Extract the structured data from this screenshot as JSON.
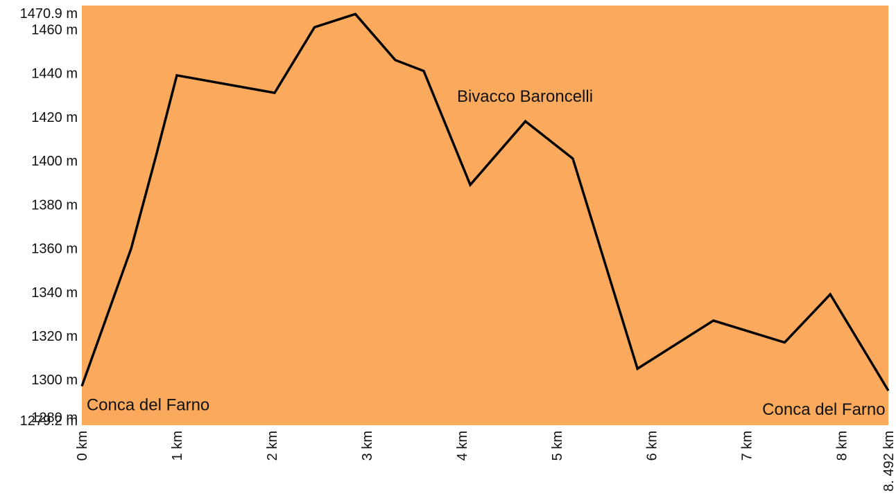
{
  "chart_data": {
    "type": "area",
    "title": "",
    "xlabel": "",
    "ylabel": "",
    "xlim": [
      0,
      8.492
    ],
    "ylim": [
      1279.2,
      1470.9
    ],
    "grid": false,
    "legend": "none",
    "colors": {
      "fill": "#FBAA5D",
      "line": "#000000"
    },
    "y_ticks": [
      {
        "value": 1470.9,
        "label": "1470.9 m"
      },
      {
        "value": 1460,
        "label": "1460 m"
      },
      {
        "value": 1440,
        "label": "1440 m"
      },
      {
        "value": 1420,
        "label": "1420 m"
      },
      {
        "value": 1400,
        "label": "1400 m"
      },
      {
        "value": 1380,
        "label": "1380 m"
      },
      {
        "value": 1360,
        "label": "1360 m"
      },
      {
        "value": 1340,
        "label": "1340 m"
      },
      {
        "value": 1320,
        "label": "1320 m"
      },
      {
        "value": 1300,
        "label": "1300 m"
      },
      {
        "value": 1280,
        "label": "1280 m"
      },
      {
        "value": 1279.2,
        "label": "1279.2 m"
      }
    ],
    "x_ticks": [
      {
        "value": 0,
        "label": "0 km"
      },
      {
        "value": 1,
        "label": "1 km"
      },
      {
        "value": 2,
        "label": "2 km"
      },
      {
        "value": 3,
        "label": "3 km"
      },
      {
        "value": 4,
        "label": "4 km"
      },
      {
        "value": 5,
        "label": "5 km"
      },
      {
        "value": 6,
        "label": "6 km"
      },
      {
        "value": 7,
        "label": "7 km"
      },
      {
        "value": 8,
        "label": "8 km"
      },
      {
        "value": 8.492,
        "label": "8. 492 km"
      }
    ],
    "series": [
      {
        "x": [
          0,
          0.52,
          0.78,
          1.0,
          2.03,
          2.45,
          2.88,
          3.3,
          3.6,
          4.09,
          4.67,
          5.17,
          5.85,
          6.65,
          7.4,
          7.88,
          8.492
        ],
        "y": [
          1297,
          1360,
          1402,
          1439,
          1431,
          1461,
          1467,
          1446,
          1441,
          1389,
          1418,
          1401,
          1305,
          1327,
          1317,
          1339,
          1295
        ]
      }
    ],
    "annotations": [
      {
        "text": "Conca del Farno",
        "x": 0.05,
        "y": 1286,
        "anchor": "start"
      },
      {
        "text": "Bivacco Baroncelli",
        "x": 3.95,
        "y": 1427,
        "anchor": "start"
      },
      {
        "text": "Conca del Farno",
        "x": 8.46,
        "y": 1284,
        "anchor": "end"
      }
    ]
  }
}
